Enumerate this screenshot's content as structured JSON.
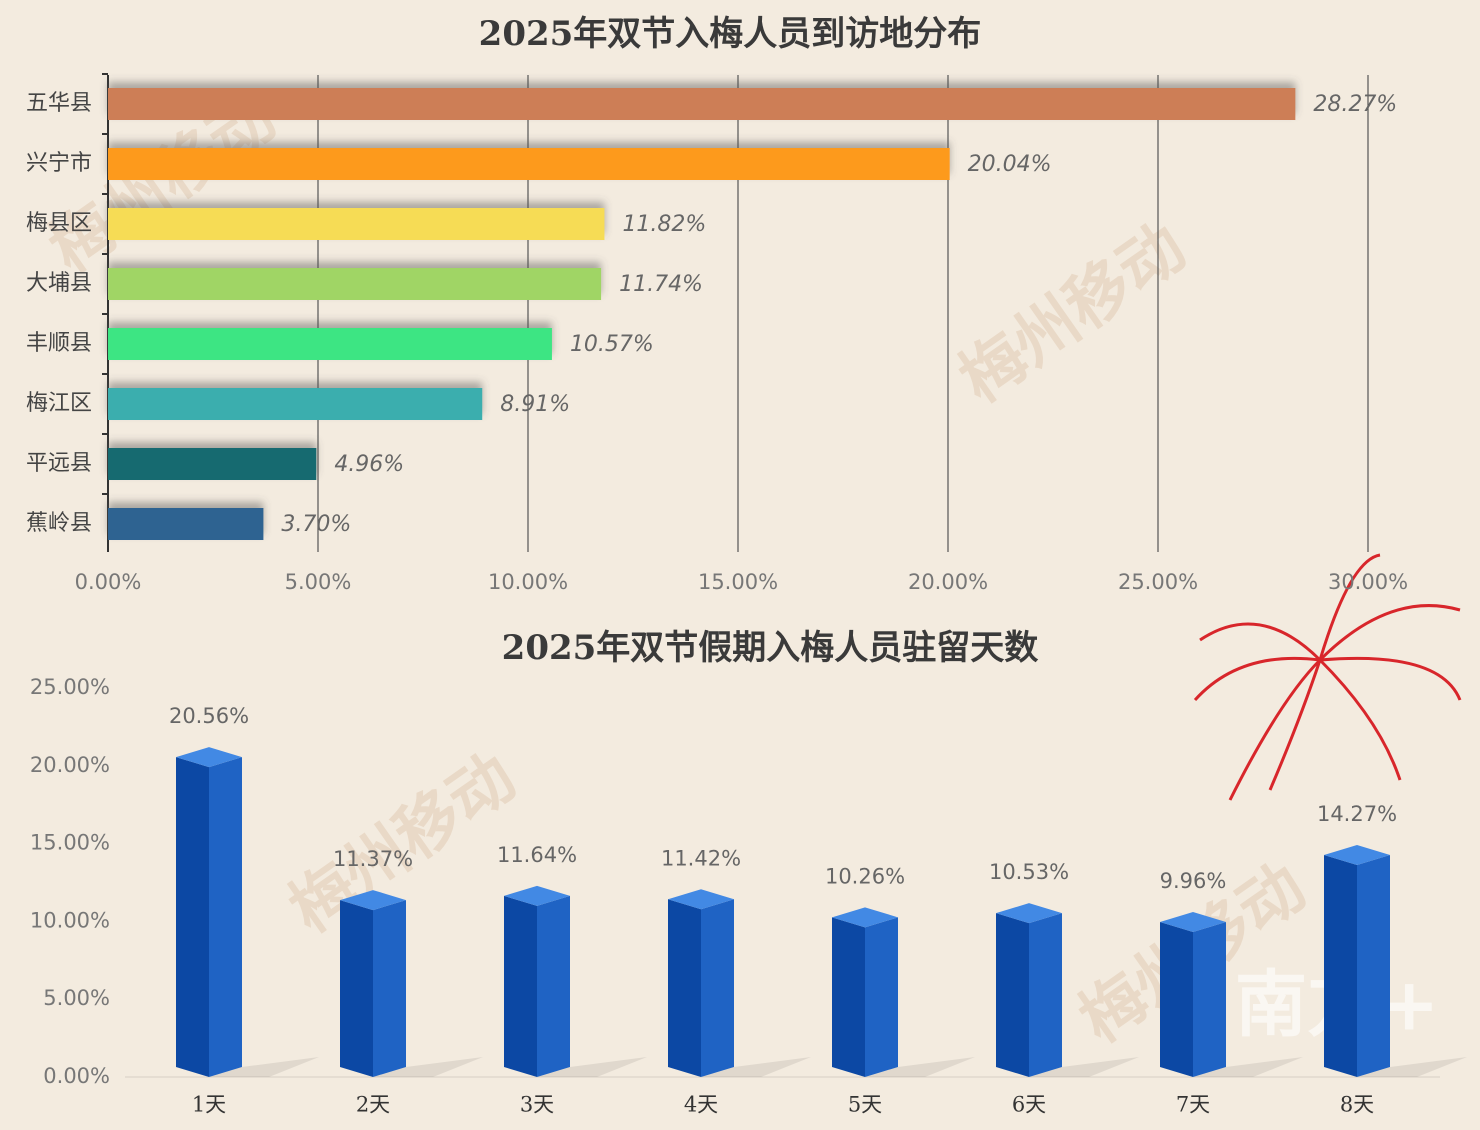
{
  "watermark": "梅州移动",
  "credit": "南方+",
  "chart_data": [
    {
      "type": "hbar",
      "title": "2025年双节入梅人员到访地分布",
      "categories": [
        "五华县",
        "兴宁市",
        "梅县区",
        "大埔县",
        "丰顺县",
        "梅江区",
        "平远县",
        "蕉岭县"
      ],
      "values": [
        28.27,
        20.04,
        11.82,
        11.74,
        10.57,
        8.91,
        4.96,
        3.7
      ],
      "value_labels": [
        "28.27%",
        "20.04%",
        "11.82%",
        "11.74%",
        "10.57%",
        "8.91%",
        "4.96%",
        "3.70%"
      ],
      "colors": [
        "#cd7e57",
        "#fd9a1e",
        "#f6dc55",
        "#a0d565",
        "#3ee583",
        "#3aaeae",
        "#126a6f",
        "#2e6491"
      ],
      "xlim": [
        0,
        30
      ],
      "xticks": [
        {
          "value": 0,
          "label": "0.00%"
        },
        {
          "value": 5,
          "label": "5.00%"
        },
        {
          "value": 10,
          "label": "10.00%"
        },
        {
          "value": 15,
          "label": "15.00%"
        },
        {
          "value": 20,
          "label": "20.00%"
        },
        {
          "value": 25,
          "label": "25.00%"
        },
        {
          "value": 30,
          "label": "30.00%"
        }
      ],
      "grid": true
    },
    {
      "type": "bar",
      "title": "2025年双节假期入梅人员驻留天数",
      "categories": [
        "1天",
        "2天",
        "3天",
        "4天",
        "5天",
        "6天",
        "7天",
        "8天"
      ],
      "values": [
        20.56,
        11.37,
        11.64,
        11.42,
        10.26,
        10.53,
        9.96,
        14.27
      ],
      "value_labels": [
        "20.56%",
        "11.37%",
        "11.64%",
        "11.42%",
        "10.26%",
        "10.53%",
        "9.96%",
        "14.27%"
      ],
      "color": "#1f63c4",
      "ylim": [
        0,
        25
      ],
      "yticks": [
        {
          "value": 0,
          "label": "0.00%"
        },
        {
          "value": 5,
          "label": "5.00%"
        },
        {
          "value": 10,
          "label": "10.00%"
        },
        {
          "value": 15,
          "label": "15.00%"
        },
        {
          "value": 20,
          "label": "20.00%"
        },
        {
          "value": 25,
          "label": "25.00%"
        }
      ],
      "grid": false
    }
  ]
}
